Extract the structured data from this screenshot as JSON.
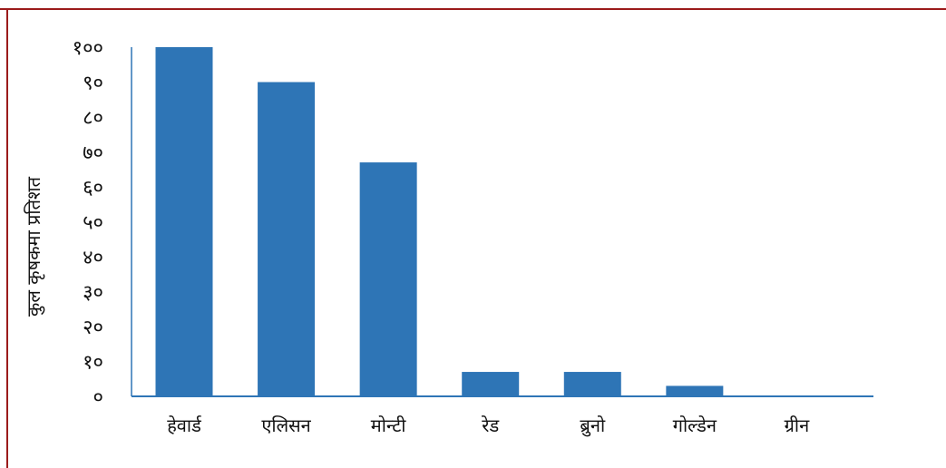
{
  "colors": {
    "bar": "#2E75B6",
    "axis": "#2E75B6",
    "frame": "#9B1B1B",
    "text": "#111111",
    "background": "#FFFFFF"
  },
  "chart_data": {
    "type": "bar",
    "title": "",
    "xlabel": "",
    "ylabel": "कुल कृषकमा प्रतिशत",
    "ylim": [
      0,
      100
    ],
    "yticks": [
      0,
      10,
      20,
      30,
      40,
      50,
      60,
      70,
      80,
      90,
      100
    ],
    "ytick_labels": [
      "०",
      "१०",
      "२०",
      "३०",
      "४०",
      "५०",
      "६०",
      "७०",
      "८०",
      "९०",
      "१००"
    ],
    "categories": [
      "हेवार्ड",
      "एलिसन",
      "मोन्टी",
      "रेड",
      "ब्रुनो",
      "गोल्डेन",
      "ग्रीन"
    ],
    "values": [
      100,
      90,
      67,
      7,
      7,
      3,
      0
    ],
    "grid": false,
    "legend": "none"
  }
}
